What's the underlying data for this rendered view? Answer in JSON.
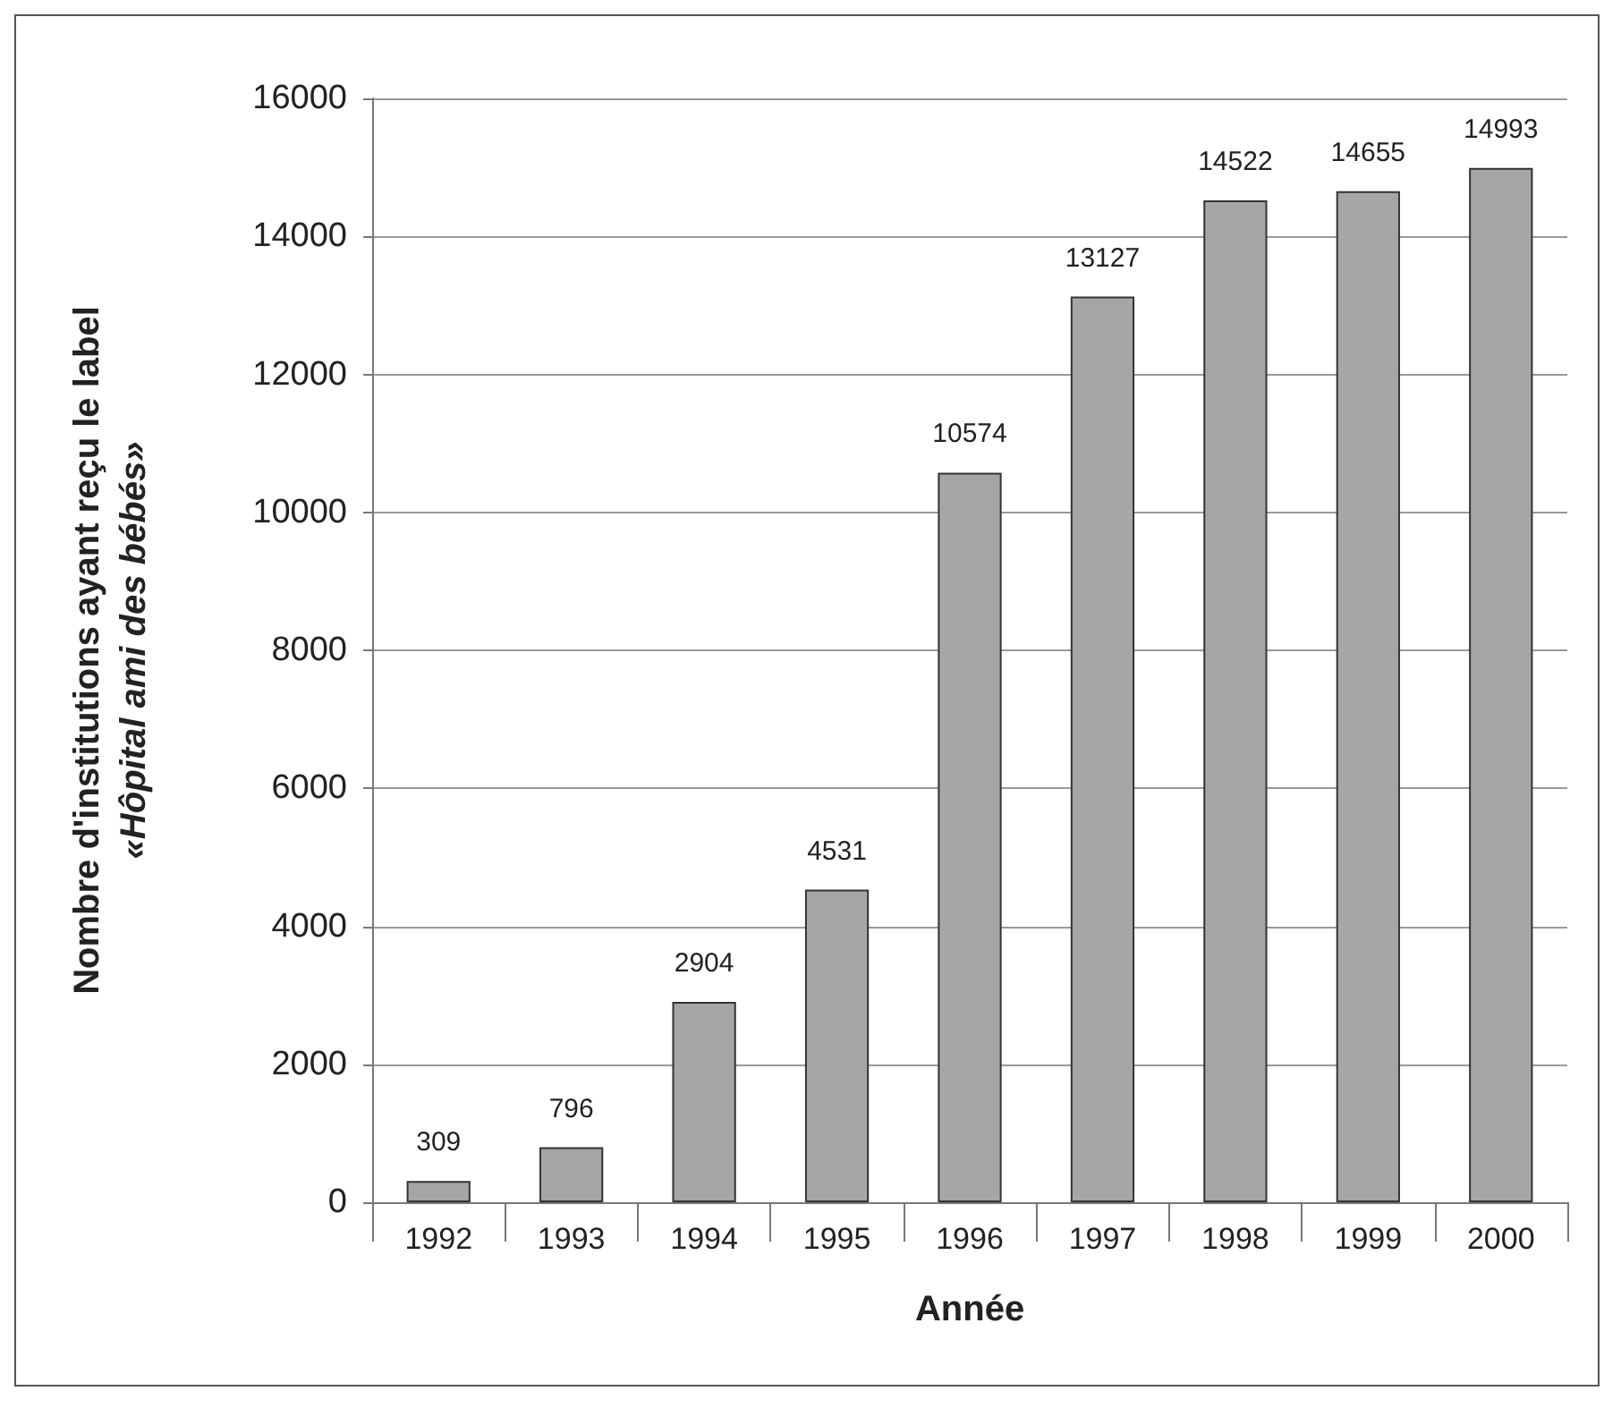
{
  "chart_data": {
    "type": "bar",
    "xlabel": "Année",
    "ylabel": "Nombre d'institutions ayant reçu le label\n«Hôpital ami des bébés»",
    "categories": [
      "1992",
      "1993",
      "1994",
      "1995",
      "1996",
      "1997",
      "1998",
      "1999",
      "2000"
    ],
    "values": [
      309,
      796,
      2904,
      4531,
      10574,
      13127,
      14522,
      14655,
      14993
    ],
    "color": "#a6a6a6",
    "ylim": [
      0,
      16000
    ],
    "yticks": [
      0,
      2000,
      4000,
      6000,
      8000,
      10000,
      12000,
      14000,
      16000
    ],
    "grid": "y",
    "data_labels": true
  }
}
